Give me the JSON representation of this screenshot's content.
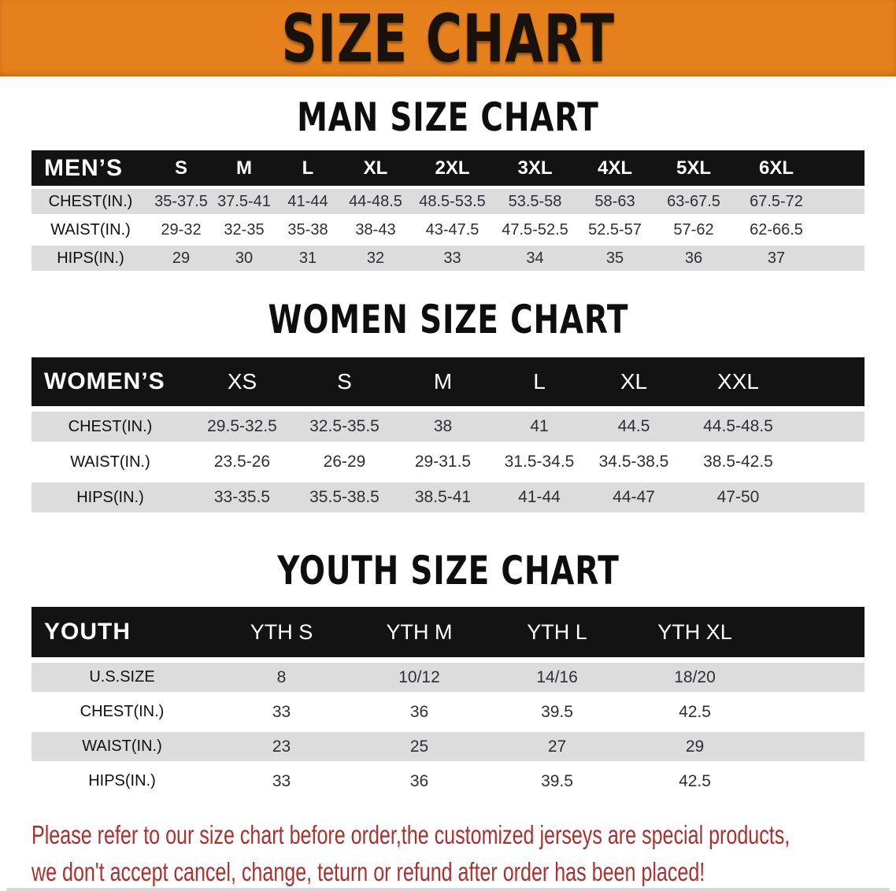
{
  "banner": {
    "title": "SIZE CHART",
    "bg_color": "#E6801C"
  },
  "men_section": {
    "heading": "MAN SIZE CHART",
    "table": {
      "header": [
        "MEN’S",
        "S",
        "M",
        "L",
        "XL",
        "2XL",
        "3XL",
        "4XL",
        "5XL",
        "6XL"
      ],
      "rows": [
        {
          "label": "CHEST(IN.)",
          "values": [
            "35-37.5",
            "37.5-41",
            "41-44",
            "44-48.5",
            "48.5-53.5",
            "53.5-58",
            "58-63",
            "63-67.5",
            "67.5-72"
          ]
        },
        {
          "label": "WAIST(IN.)",
          "values": [
            "29-32",
            "32-35",
            "35-38",
            "38-43",
            "43-47.5",
            "47.5-52.5",
            "52.5-57",
            "57-62",
            "62-66.5"
          ]
        },
        {
          "label": "HIPS(IN.)",
          "values": [
            "29",
            "30",
            "31",
            "32",
            "33",
            "34",
            "35",
            "36",
            "37"
          ]
        }
      ]
    }
  },
  "women_section": {
    "heading": "WOMEN SIZE CHART",
    "table": {
      "header": [
        "WOMEN’S",
        "XS",
        "S",
        "M",
        "L",
        "XL",
        "XXL"
      ],
      "rows": [
        {
          "label": "CHEST(IN.)",
          "values": [
            "29.5-32.5",
            "32.5-35.5",
            "38",
            "41",
            "44.5",
            "44.5-48.5"
          ]
        },
        {
          "label": "WAIST(IN.)",
          "values": [
            "23.5-26",
            "26-29",
            "29-31.5",
            "31.5-34.5",
            "34.5-38.5",
            "38.5-42.5"
          ]
        },
        {
          "label": "HIPS(IN.)",
          "values": [
            "33-35.5",
            "35.5-38.5",
            "38.5-41",
            "41-44",
            "44-47",
            "47-50"
          ]
        }
      ]
    }
  },
  "youth_section": {
    "heading": "YOUTH SIZE CHART",
    "table": {
      "header": [
        "YOUTH",
        "YTH S",
        "YTH M",
        "YTH L",
        "YTH XL"
      ],
      "rows": [
        {
          "label": "U.S.SIZE",
          "values": [
            "8",
            "10/12",
            "14/16",
            "18/20"
          ]
        },
        {
          "label": "CHEST(IN.)",
          "values": [
            "33",
            "36",
            "39.5",
            "42.5"
          ]
        },
        {
          "label": "WAIST(IN.)",
          "values": [
            "23",
            "25",
            "27",
            "29"
          ]
        },
        {
          "label": "HIPS(IN.)",
          "values": [
            "33",
            "36",
            "39.5",
            "42.5"
          ]
        }
      ]
    }
  },
  "footer": {
    "line1": "Please refer to our size chart before order,the customized jerseys are special products,",
    "line2": "we don't accept cancel, change, teturn or refund after order has been placed!",
    "text_color": "#AC3030"
  },
  "colors": {
    "header_bar_bg": "#131313",
    "header_bar_text": "#FFFFFF",
    "row_shade_bg": "#DCDCDC",
    "body_text": "#2E2E36"
  }
}
